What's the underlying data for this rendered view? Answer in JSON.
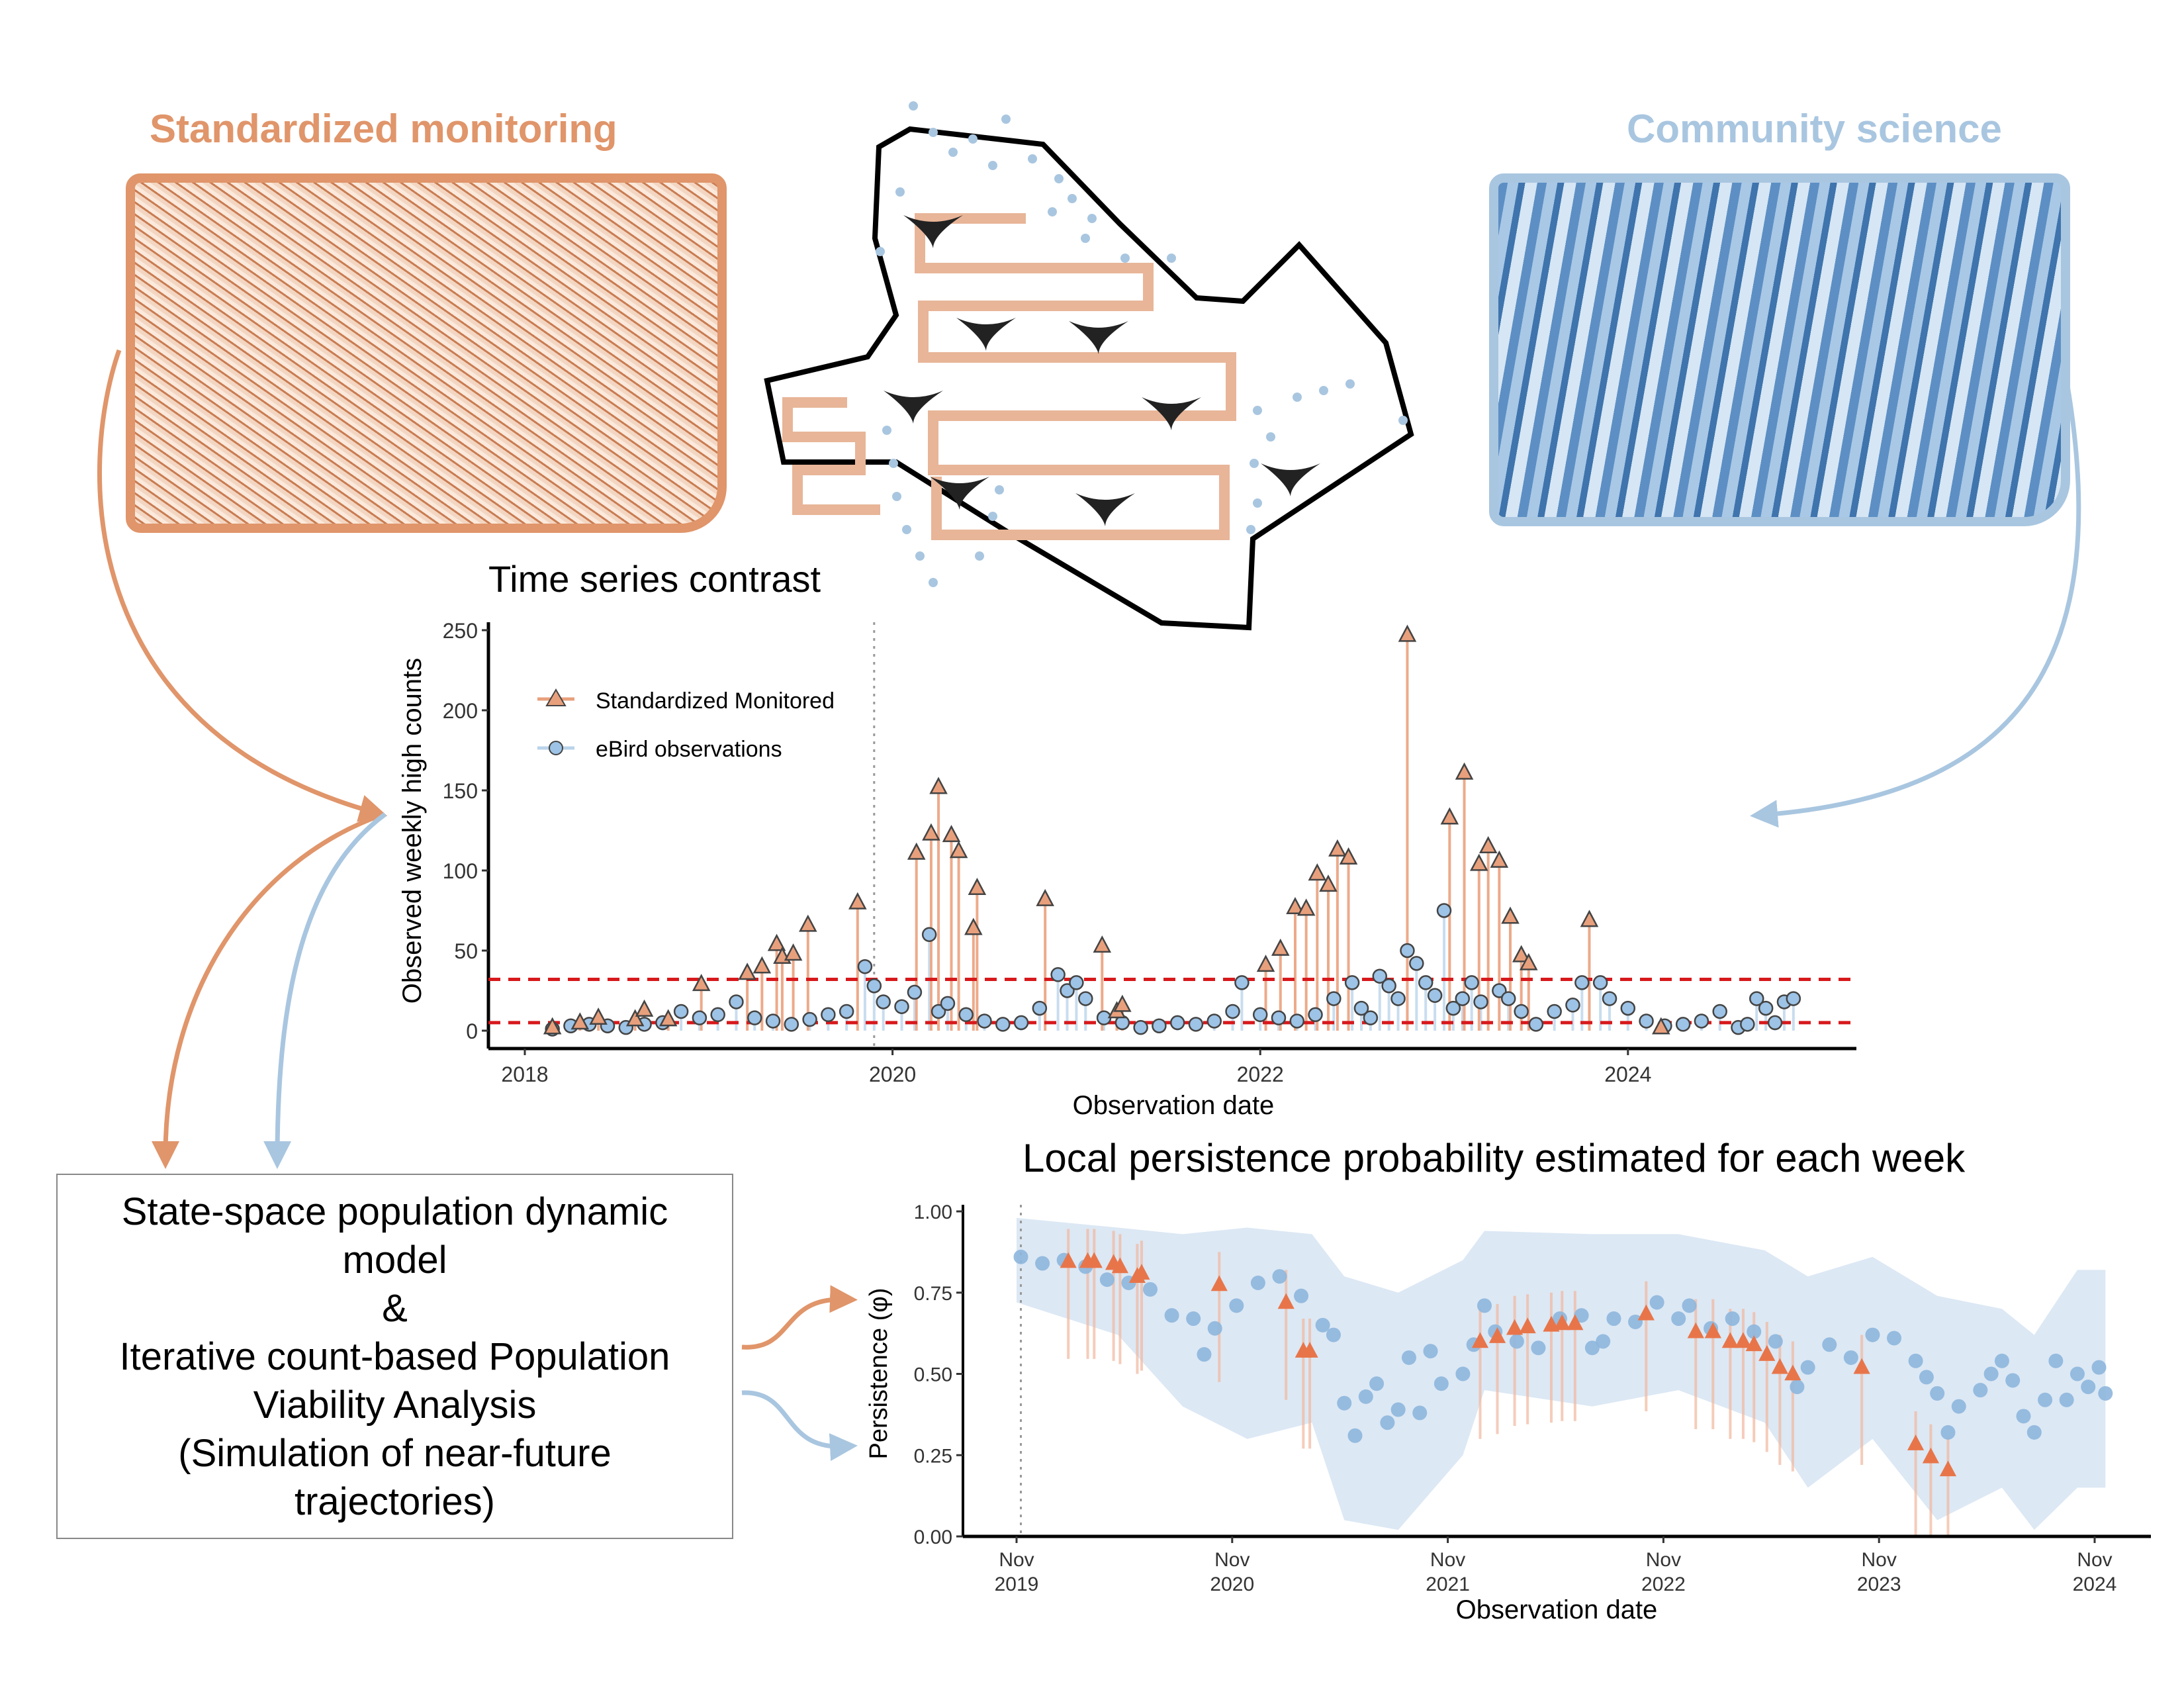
{
  "left_panel": {
    "title": "Standardized monitoring",
    "color": "#E0956A"
  },
  "right_panel": {
    "title": "Community science",
    "color": "#A9C6E0"
  },
  "model_box": {
    "lines": [
      "State-space population dynamic",
      "model",
      "&",
      "Iterative count-based Population",
      "Viability Analysis",
      "(Simulation of near-future",
      "trajectories)"
    ]
  },
  "chart_data": [
    {
      "type": "scatter",
      "title": "Time series contrast",
      "xlabel": "Observation date",
      "ylabel": "Observed weekly high counts",
      "xlim": [
        2017.8,
        2025.25
      ],
      "ylim": [
        -8,
        260
      ],
      "xticks": [
        "2018",
        "2020",
        "2022",
        "2024"
      ],
      "yticks": [
        "0",
        "50",
        "100",
        "150",
        "200",
        "250"
      ],
      "grid": false,
      "legend_position": "top-left",
      "reference_lines": {
        "color": "#D7191C",
        "style": "dashed",
        "values": [
          32,
          5
        ]
      },
      "vertical_marker": 2019.9,
      "series": [
        {
          "name": "Standardized Monitored",
          "marker": "triangle",
          "color": "#E8A07C",
          "points": [
            [
              2018.15,
              2
            ],
            [
              2018.3,
              5
            ],
            [
              2018.4,
              8
            ],
            [
              2018.6,
              7
            ],
            [
              2018.65,
              13
            ],
            [
              2018.78,
              7
            ],
            [
              2018.96,
              29
            ],
            [
              2019.21,
              36
            ],
            [
              2019.29,
              40
            ],
            [
              2019.37,
              54
            ],
            [
              2019.4,
              46
            ],
            [
              2019.46,
              48
            ],
            [
              2019.54,
              66
            ],
            [
              2019.81,
              80
            ],
            [
              2020.13,
              111
            ],
            [
              2020.21,
              123
            ],
            [
              2020.25,
              152
            ],
            [
              2020.32,
              122
            ],
            [
              2020.36,
              112
            ],
            [
              2020.44,
              64
            ],
            [
              2020.46,
              89
            ],
            [
              2020.83,
              82
            ],
            [
              2021.14,
              53
            ],
            [
              2021.22,
              12
            ],
            [
              2021.25,
              16
            ],
            [
              2022.03,
              41
            ],
            [
              2022.11,
              51
            ],
            [
              2022.19,
              77
            ],
            [
              2022.25,
              76
            ],
            [
              2022.31,
              98
            ],
            [
              2022.37,
              91
            ],
            [
              2022.42,
              113
            ],
            [
              2022.48,
              108
            ],
            [
              2022.8,
              247
            ],
            [
              2023.03,
              133
            ],
            [
              2023.11,
              161
            ],
            [
              2023.19,
              104
            ],
            [
              2023.24,
              115
            ],
            [
              2023.3,
              106
            ],
            [
              2023.36,
              71
            ],
            [
              2023.42,
              47
            ],
            [
              2023.46,
              42
            ],
            [
              2023.79,
              69
            ],
            [
              2024.18,
              2
            ]
          ]
        },
        {
          "name": "eBird observations",
          "marker": "circle",
          "color": "#9DC3E6",
          "points": [
            [
              2018.15,
              1
            ],
            [
              2018.25,
              3
            ],
            [
              2018.35,
              4
            ],
            [
              2018.45,
              3
            ],
            [
              2018.55,
              2
            ],
            [
              2018.65,
              4
            ],
            [
              2018.75,
              5
            ],
            [
              2018.85,
              12
            ],
            [
              2018.95,
              8
            ],
            [
              2019.05,
              10
            ],
            [
              2019.15,
              18
            ],
            [
              2019.25,
              8
            ],
            [
              2019.35,
              6
            ],
            [
              2019.45,
              4
            ],
            [
              2019.55,
              7
            ],
            [
              2019.65,
              10
            ],
            [
              2019.75,
              12
            ],
            [
              2019.85,
              40
            ],
            [
              2019.9,
              28
            ],
            [
              2019.95,
              18
            ],
            [
              2020.05,
              15
            ],
            [
              2020.12,
              24
            ],
            [
              2020.2,
              60
            ],
            [
              2020.25,
              12
            ],
            [
              2020.3,
              17
            ],
            [
              2020.4,
              10
            ],
            [
              2020.5,
              6
            ],
            [
              2020.6,
              4
            ],
            [
              2020.7,
              5
            ],
            [
              2020.8,
              14
            ],
            [
              2020.9,
              35
            ],
            [
              2020.95,
              25
            ],
            [
              2021.0,
              30
            ],
            [
              2021.05,
              20
            ],
            [
              2021.15,
              8
            ],
            [
              2021.25,
              5
            ],
            [
              2021.35,
              2
            ],
            [
              2021.45,
              3
            ],
            [
              2021.55,
              5
            ],
            [
              2021.65,
              4
            ],
            [
              2021.75,
              6
            ],
            [
              2021.85,
              12
            ],
            [
              2021.9,
              30
            ],
            [
              2022.0,
              10
            ],
            [
              2022.1,
              8
            ],
            [
              2022.2,
              6
            ],
            [
              2022.3,
              10
            ],
            [
              2022.4,
              20
            ],
            [
              2022.5,
              30
            ],
            [
              2022.55,
              14
            ],
            [
              2022.6,
              8
            ],
            [
              2022.65,
              34
            ],
            [
              2022.7,
              28
            ],
            [
              2022.75,
              20
            ],
            [
              2022.8,
              50
            ],
            [
              2022.85,
              42
            ],
            [
              2022.9,
              30
            ],
            [
              2022.95,
              22
            ],
            [
              2023.0,
              75
            ],
            [
              2023.05,
              14
            ],
            [
              2023.1,
              20
            ],
            [
              2023.15,
              30
            ],
            [
              2023.2,
              18
            ],
            [
              2023.3,
              25
            ],
            [
              2023.35,
              20
            ],
            [
              2023.42,
              12
            ],
            [
              2023.5,
              4
            ],
            [
              2023.6,
              12
            ],
            [
              2023.7,
              16
            ],
            [
              2023.75,
              30
            ],
            [
              2023.85,
              30
            ],
            [
              2023.9,
              20
            ],
            [
              2024.0,
              14
            ],
            [
              2024.1,
              6
            ],
            [
              2024.2,
              3
            ],
            [
              2024.3,
              4
            ],
            [
              2024.4,
              6
            ],
            [
              2024.5,
              12
            ],
            [
              2024.6,
              2
            ],
            [
              2024.65,
              4
            ],
            [
              2024.7,
              20
            ],
            [
              2024.75,
              14
            ],
            [
              2024.8,
              5
            ],
            [
              2024.85,
              18
            ],
            [
              2024.9,
              20
            ]
          ]
        }
      ]
    },
    {
      "type": "scatter",
      "title": "Local persistence probability estimated for each week",
      "xlabel": "Observation date",
      "ylabel": "Persistence (φ)",
      "xlim": [
        2019.6,
        2025.0
      ],
      "ylim": [
        0,
        1
      ],
      "xticks": [
        [
          "Nov",
          "2019"
        ],
        [
          "Nov",
          "2020"
        ],
        [
          "Nov",
          "2021"
        ],
        [
          "Nov",
          "2022"
        ],
        [
          "Nov",
          "2023"
        ],
        [
          "Nov",
          "2024"
        ]
      ],
      "yticks": [
        "0.00",
        "0.25",
        "0.50",
        "0.75",
        "1.00"
      ],
      "grid": false,
      "vertical_marker": 2019.85,
      "ci_band": [
        [
          2019.83,
          0.72,
          0.98
        ],
        [
          2020.3,
          0.62,
          0.95
        ],
        [
          2020.6,
          0.4,
          0.93
        ],
        [
          2020.9,
          0.3,
          0.95
        ],
        [
          2021.2,
          0.35,
          0.93
        ],
        [
          2021.35,
          0.05,
          0.8
        ],
        [
          2021.6,
          0.02,
          0.75
        ],
        [
          2021.9,
          0.25,
          0.85
        ],
        [
          2022.0,
          0.45,
          0.94
        ],
        [
          2022.5,
          0.4,
          0.93
        ],
        [
          2022.9,
          0.45,
          0.93
        ],
        [
          2023.3,
          0.35,
          0.88
        ],
        [
          2023.5,
          0.15,
          0.8
        ],
        [
          2023.8,
          0.3,
          0.86
        ],
        [
          2024.1,
          0.05,
          0.74
        ],
        [
          2024.4,
          0.15,
          0.7
        ],
        [
          2024.55,
          0.02,
          0.62
        ],
        [
          2024.75,
          0.15,
          0.82
        ],
        [
          2024.88,
          0.15,
          0.82
        ]
      ],
      "series": [
        {
          "marker": "circle",
          "color": "#8DB6DD",
          "points": [
            [
              2019.85,
              0.86
            ],
            [
              2019.95,
              0.84
            ],
            [
              2020.05,
              0.85
            ],
            [
              2020.15,
              0.83
            ],
            [
              2020.25,
              0.79
            ],
            [
              2020.35,
              0.78
            ],
            [
              2020.45,
              0.76
            ],
            [
              2020.55,
              0.68
            ],
            [
              2020.65,
              0.67
            ],
            [
              2020.7,
              0.56
            ],
            [
              2020.75,
              0.64
            ],
            [
              2020.85,
              0.71
            ],
            [
              2020.95,
              0.78
            ],
            [
              2021.05,
              0.8
            ],
            [
              2021.15,
              0.74
            ],
            [
              2021.25,
              0.65
            ],
            [
              2021.3,
              0.62
            ],
            [
              2021.35,
              0.41
            ],
            [
              2021.4,
              0.31
            ],
            [
              2021.45,
              0.43
            ],
            [
              2021.5,
              0.47
            ],
            [
              2021.55,
              0.35
            ],
            [
              2021.6,
              0.39
            ],
            [
              2021.65,
              0.55
            ],
            [
              2021.7,
              0.38
            ],
            [
              2021.75,
              0.57
            ],
            [
              2021.8,
              0.47
            ],
            [
              2021.9,
              0.5
            ],
            [
              2021.95,
              0.59
            ],
            [
              2022.0,
              0.71
            ],
            [
              2022.05,
              0.63
            ],
            [
              2022.15,
              0.6
            ],
            [
              2022.25,
              0.58
            ],
            [
              2022.35,
              0.67
            ],
            [
              2022.45,
              0.68
            ],
            [
              2022.5,
              0.58
            ],
            [
              2022.55,
              0.6
            ],
            [
              2022.6,
              0.67
            ],
            [
              2022.7,
              0.66
            ],
            [
              2022.8,
              0.72
            ],
            [
              2022.9,
              0.67
            ],
            [
              2022.95,
              0.71
            ],
            [
              2023.05,
              0.64
            ],
            [
              2023.15,
              0.67
            ],
            [
              2023.25,
              0.63
            ],
            [
              2023.35,
              0.6
            ],
            [
              2023.45,
              0.46
            ],
            [
              2023.5,
              0.52
            ],
            [
              2023.6,
              0.59
            ],
            [
              2023.7,
              0.55
            ],
            [
              2023.8,
              0.62
            ],
            [
              2023.9,
              0.61
            ],
            [
              2024.0,
              0.54
            ],
            [
              2024.05,
              0.49
            ],
            [
              2024.1,
              0.44
            ],
            [
              2024.15,
              0.32
            ],
            [
              2024.2,
              0.4
            ],
            [
              2024.3,
              0.45
            ],
            [
              2024.35,
              0.5
            ],
            [
              2024.4,
              0.54
            ],
            [
              2024.45,
              0.48
            ],
            [
              2024.5,
              0.37
            ],
            [
              2024.55,
              0.32
            ],
            [
              2024.6,
              0.42
            ],
            [
              2024.65,
              0.54
            ],
            [
              2024.7,
              0.42
            ],
            [
              2024.75,
              0.5
            ],
            [
              2024.8,
              0.46
            ],
            [
              2024.85,
              0.52
            ],
            [
              2024.88,
              0.44
            ]
          ]
        },
        {
          "marker": "triangle",
          "color": "#E8754A",
          "points": [
            [
              2020.07,
              0.846
            ],
            [
              2020.16,
              0.846
            ],
            [
              2020.19,
              0.846
            ],
            [
              2020.28,
              0.84
            ],
            [
              2020.31,
              0.83
            ],
            [
              2020.39,
              0.8
            ],
            [
              2020.41,
              0.81
            ],
            [
              2020.77,
              0.775
            ],
            [
              2021.08,
              0.72
            ],
            [
              2021.16,
              0.57
            ],
            [
              2021.19,
              0.57
            ],
            [
              2021.98,
              0.6
            ],
            [
              2022.06,
              0.615
            ],
            [
              2022.14,
              0.64
            ],
            [
              2022.2,
              0.645
            ],
            [
              2022.31,
              0.65
            ],
            [
              2022.36,
              0.655
            ],
            [
              2022.42,
              0.655
            ],
            [
              2022.75,
              0.685
            ],
            [
              2022.98,
              0.63
            ],
            [
              2023.06,
              0.63
            ],
            [
              2023.14,
              0.6
            ],
            [
              2023.2,
              0.6
            ],
            [
              2023.25,
              0.59
            ],
            [
              2023.31,
              0.56
            ],
            [
              2023.37,
              0.52
            ],
            [
              2023.43,
              0.5
            ],
            [
              2023.75,
              0.52
            ],
            [
              2024.0,
              0.285
            ],
            [
              2024.07,
              0.245
            ],
            [
              2024.15,
              0.205
            ]
          ]
        }
      ]
    }
  ]
}
